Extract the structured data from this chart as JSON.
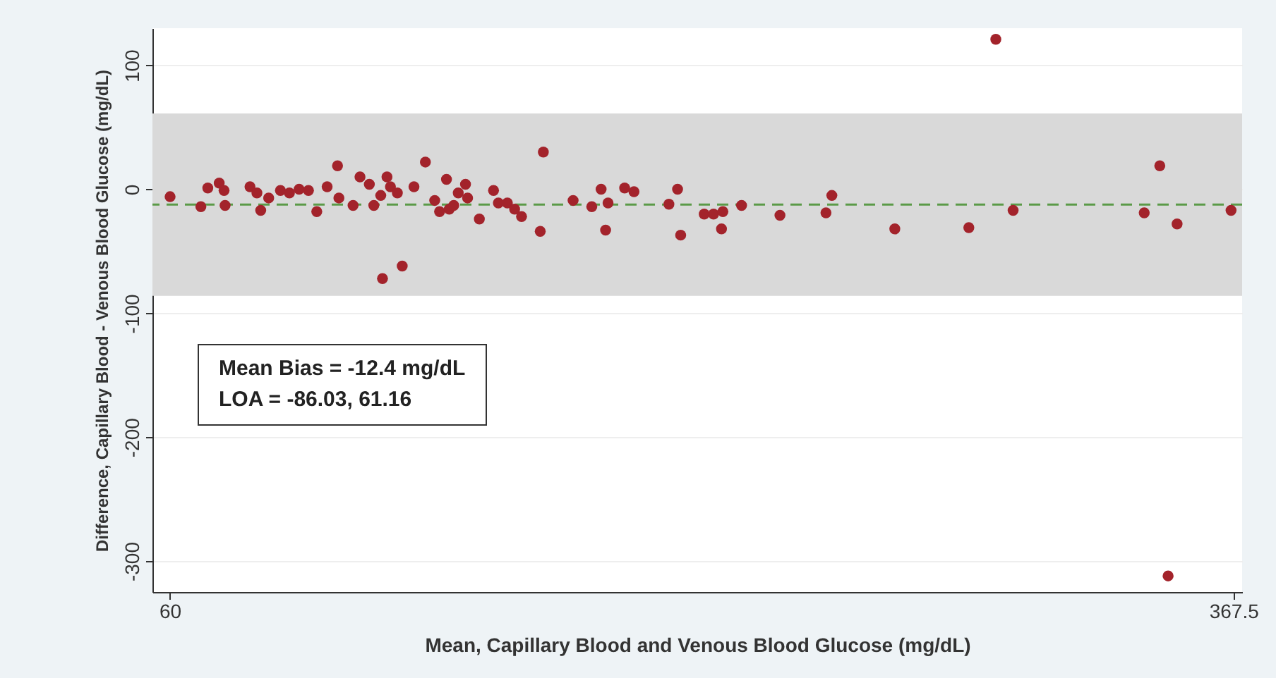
{
  "chart_data": {
    "type": "scatter",
    "xlabel": "Mean, Capillary Blood and Venous Blood Glucose (mg/dL)",
    "ylabel": "Difference, Capillary Blood - Venous Blood Glucose (mg/dL)",
    "annotations": [
      "Mean Bias = -12.4 mg/dL",
      "LOA = -86.03, 61.16"
    ],
    "xlim": [
      55,
      370
    ],
    "ylim": [
      -325,
      130
    ],
    "xticks": [
      60,
      367.5
    ],
    "yticks": [
      100,
      0,
      -100,
      -200,
      -300
    ],
    "grid": "y",
    "marker": "circle",
    "bands": [
      {
        "axis": "y",
        "from": -86.03,
        "to": 61.16,
        "color": "#d9d9d9"
      }
    ],
    "ref_lines": [
      {
        "axis": "y",
        "value": -12.4,
        "color": "#5b9a48",
        "line_style": "dashed"
      }
    ],
    "series": [
      {
        "color": "#a3232b",
        "x": [
          60.1,
          69,
          71,
          74.3,
          75.7,
          76,
          83.2,
          85.2,
          86.3,
          88.6,
          92,
          94.6,
          97.4,
          100.1,
          102.5,
          105.5,
          108.5,
          108.9,
          113,
          115,
          117.7,
          119,
          121,
          122.8,
          123.8,
          125.8,
          127.2,
          121.5,
          130.6,
          133.9,
          136.6,
          138,
          140,
          140.8,
          142.1,
          143.4,
          145.5,
          146.1,
          149.5,
          153.6,
          155,
          157.6,
          159.7,
          161.7,
          167.1,
          168,
          176.6,
          182,
          184.7,
          186,
          186.7,
          191.5,
          194.2,
          204.3,
          206.8,
          207.7,
          214.5,
          217.2,
          219.9,
          219.5,
          225.3,
          236.4,
          249.7,
          251.4,
          269.6,
          291,
          298.8,
          303.8,
          341.7,
          346.2,
          348.6,
          351.2,
          366.8
        ],
        "values": [
          -6,
          -14,
          1,
          5,
          -1,
          -13,
          2,
          -3,
          -17,
          -7,
          -1,
          -3,
          0,
          -1,
          -18,
          2,
          19,
          -7,
          -13,
          10,
          4,
          -13,
          -5,
          10,
          2,
          -3,
          -62,
          -72,
          2,
          22,
          -9,
          -18,
          8,
          -16,
          -13,
          -3,
          4,
          -7,
          -24,
          -1,
          -11,
          -11,
          -16,
          -22,
          -34,
          30,
          -9,
          -14,
          0,
          -33,
          -11,
          1,
          -2,
          -12,
          0,
          -37,
          -20,
          -20,
          -18,
          -32,
          -13,
          -21,
          -19,
          -5,
          -32,
          -31,
          121,
          -17,
          -19,
          19,
          -312,
          -28,
          -17
        ]
      }
    ]
  }
}
